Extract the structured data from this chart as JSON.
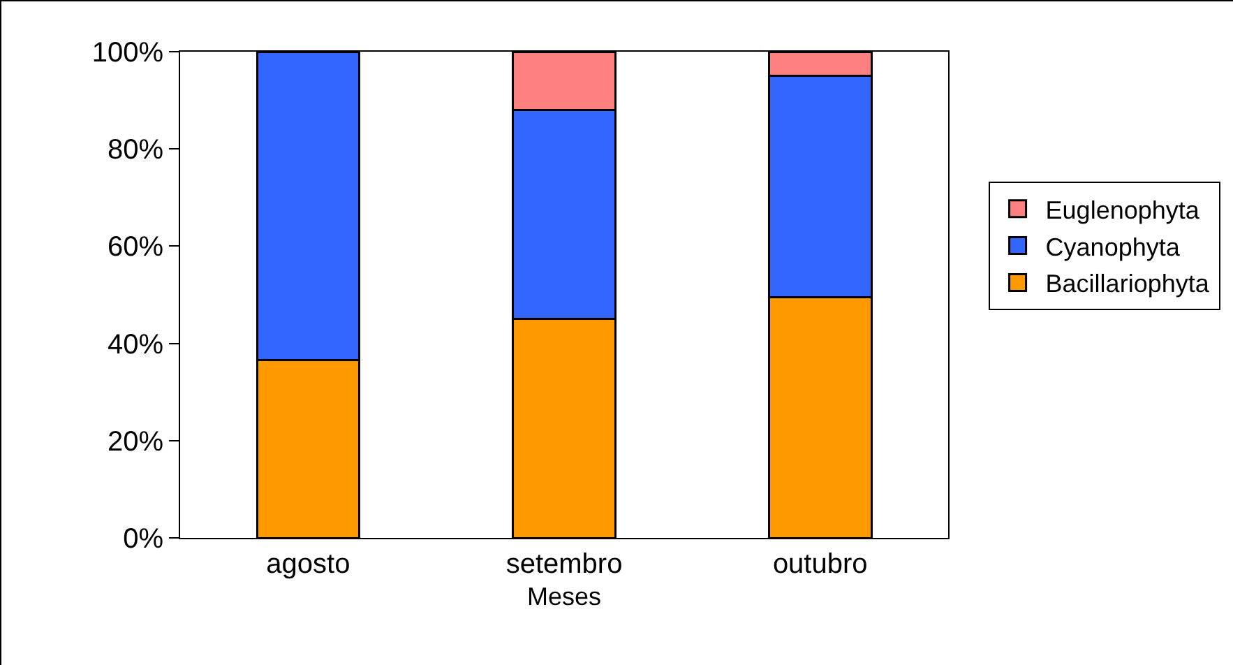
{
  "chart_data": {
    "type": "bar",
    "stacked": true,
    "xlabel": "Meses",
    "categories": [
      "agosto",
      "setembro",
      "outubro"
    ],
    "series": [
      {
        "name": "Bacillariophyta",
        "color": "#ff9900",
        "values": [
          36.5,
          45,
          49.5
        ]
      },
      {
        "name": "Cyanophyta",
        "color": "#3366ff",
        "values": [
          63.5,
          43,
          45.5
        ]
      },
      {
        "name": "Euglenophyta",
        "color": "#ff8080",
        "values": [
          null,
          12,
          5
        ]
      }
    ],
    "ylim": [
      0,
      100
    ],
    "yticks": [
      {
        "value": 0,
        "label": "0%"
      },
      {
        "value": 20,
        "label": "20%"
      },
      {
        "value": 40,
        "label": "40%"
      },
      {
        "value": 60,
        "label": "60%"
      },
      {
        "value": 80,
        "label": "80%"
      },
      {
        "value": 100,
        "label": "100%"
      }
    ],
    "grid": false,
    "legend": "right"
  }
}
